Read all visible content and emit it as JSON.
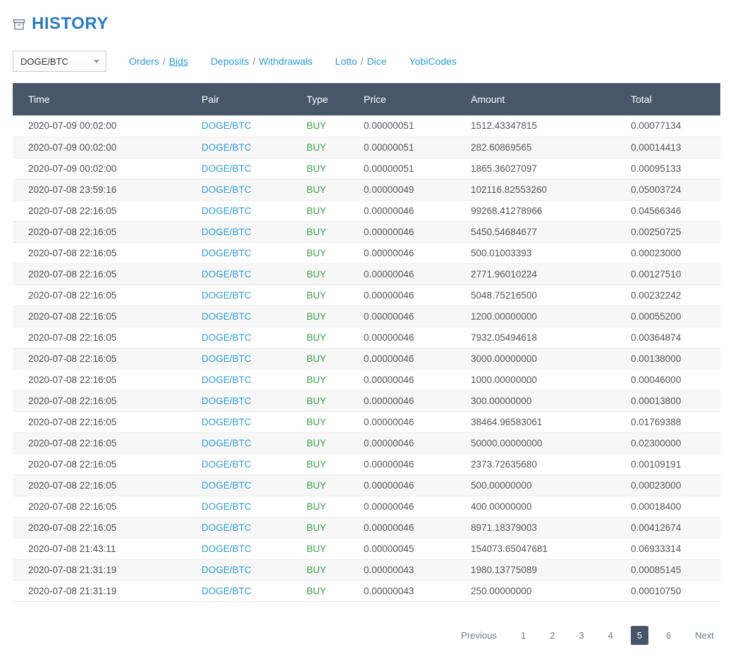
{
  "page": {
    "title": "HISTORY"
  },
  "colors": {
    "title_blue": "#2b7dbd",
    "link_blue": "#2b9cd8",
    "buy_green": "#3aa24a",
    "header_bg": "#48566a"
  },
  "filters": {
    "pair_select_value": "DOGE/BTC"
  },
  "nav": {
    "sep": "/",
    "orders": "Orders",
    "bids": "Bids",
    "deposits": "Deposits",
    "withdrawals": "Withdrawals",
    "lotto": "Lotto",
    "dice": "Dice",
    "yobicodes": "YobiCodes"
  },
  "table": {
    "columns": [
      "Time",
      "Pair",
      "Type",
      "Price",
      "Amount",
      "Total"
    ],
    "rows": [
      {
        "time": "2020-07-09 00:02:00",
        "pair": "DOGE/BTC",
        "type": "BUY",
        "price": "0.00000051",
        "amount": "1512.43347815",
        "total": "0.00077134"
      },
      {
        "time": "2020-07-09 00:02:00",
        "pair": "DOGE/BTC",
        "type": "BUY",
        "price": "0.00000051",
        "amount": "282.60869565",
        "total": "0.00014413"
      },
      {
        "time": "2020-07-09 00:02:00",
        "pair": "DOGE/BTC",
        "type": "BUY",
        "price": "0.00000051",
        "amount": "1865.36027097",
        "total": "0.00095133"
      },
      {
        "time": "2020-07-08 23:59:16",
        "pair": "DOGE/BTC",
        "type": "BUY",
        "price": "0.00000049",
        "amount": "102116.82553260",
        "total": "0.05003724"
      },
      {
        "time": "2020-07-08 22:16:05",
        "pair": "DOGE/BTC",
        "type": "BUY",
        "price": "0.00000046",
        "amount": "99268.41278966",
        "total": "0.04566346"
      },
      {
        "time": "2020-07-08 22:16:05",
        "pair": "DOGE/BTC",
        "type": "BUY",
        "price": "0.00000046",
        "amount": "5450.54684677",
        "total": "0.00250725"
      },
      {
        "time": "2020-07-08 22:16:05",
        "pair": "DOGE/BTC",
        "type": "BUY",
        "price": "0.00000046",
        "amount": "500.01003393",
        "total": "0.00023000"
      },
      {
        "time": "2020-07-08 22:16:05",
        "pair": "DOGE/BTC",
        "type": "BUY",
        "price": "0.00000046",
        "amount": "2771.96010224",
        "total": "0.00127510"
      },
      {
        "time": "2020-07-08 22:16:05",
        "pair": "DOGE/BTC",
        "type": "BUY",
        "price": "0.00000046",
        "amount": "5048.75216500",
        "total": "0.00232242"
      },
      {
        "time": "2020-07-08 22:16:05",
        "pair": "DOGE/BTC",
        "type": "BUY",
        "price": "0.00000046",
        "amount": "1200.00000000",
        "total": "0.00055200"
      },
      {
        "time": "2020-07-08 22:16:05",
        "pair": "DOGE/BTC",
        "type": "BUY",
        "price": "0.00000046",
        "amount": "7932.05494618",
        "total": "0.00364874"
      },
      {
        "time": "2020-07-08 22:16:05",
        "pair": "DOGE/BTC",
        "type": "BUY",
        "price": "0.00000046",
        "amount": "3000.00000000",
        "total": "0.00138000"
      },
      {
        "time": "2020-07-08 22:16:05",
        "pair": "DOGE/BTC",
        "type": "BUY",
        "price": "0.00000046",
        "amount": "1000.00000000",
        "total": "0.00046000"
      },
      {
        "time": "2020-07-08 22:16:05",
        "pair": "DOGE/BTC",
        "type": "BUY",
        "price": "0.00000046",
        "amount": "300.00000000",
        "total": "0.00013800"
      },
      {
        "time": "2020-07-08 22:16:05",
        "pair": "DOGE/BTC",
        "type": "BUY",
        "price": "0.00000046",
        "amount": "38464.96583061",
        "total": "0.01769388"
      },
      {
        "time": "2020-07-08 22:16:05",
        "pair": "DOGE/BTC",
        "type": "BUY",
        "price": "0.00000046",
        "amount": "50000.00000000",
        "total": "0.02300000"
      },
      {
        "time": "2020-07-08 22:16:05",
        "pair": "DOGE/BTC",
        "type": "BUY",
        "price": "0.00000046",
        "amount": "2373.72635680",
        "total": "0.00109191"
      },
      {
        "time": "2020-07-08 22:16:05",
        "pair": "DOGE/BTC",
        "type": "BUY",
        "price": "0.00000046",
        "amount": "500.00000000",
        "total": "0.00023000"
      },
      {
        "time": "2020-07-08 22:16:05",
        "pair": "DOGE/BTC",
        "type": "BUY",
        "price": "0.00000046",
        "amount": "400.00000000",
        "total": "0.00018400"
      },
      {
        "time": "2020-07-08 22:16:05",
        "pair": "DOGE/BTC",
        "type": "BUY",
        "price": "0.00000046",
        "amount": "8971.18379003",
        "total": "0.00412674"
      },
      {
        "time": "2020-07-08 21:43:11",
        "pair": "DOGE/BTC",
        "type": "BUY",
        "price": "0.00000045",
        "amount": "154073.65047681",
        "total": "0.06933314"
      },
      {
        "time": "2020-07-08 21:31:19",
        "pair": "DOGE/BTC",
        "type": "BUY",
        "price": "0.00000043",
        "amount": "1980.13775089",
        "total": "0.00085145"
      },
      {
        "time": "2020-07-08 21:31:19",
        "pair": "DOGE/BTC",
        "type": "BUY",
        "price": "0.00000043",
        "amount": "250.00000000",
        "total": "0.00010750"
      }
    ]
  },
  "pagination": {
    "items": [
      {
        "label": "Previous",
        "name": "pagination-previous"
      },
      {
        "label": "1",
        "name": "pagination-page-1"
      },
      {
        "label": "2",
        "name": "pagination-page-2"
      },
      {
        "label": "3",
        "name": "pagination-page-3"
      },
      {
        "label": "4",
        "name": "pagination-page-4"
      },
      {
        "label": "5",
        "name": "pagination-page-5",
        "active": true
      },
      {
        "label": "6",
        "name": "pagination-page-6"
      },
      {
        "label": "Next",
        "name": "pagination-next"
      }
    ]
  }
}
